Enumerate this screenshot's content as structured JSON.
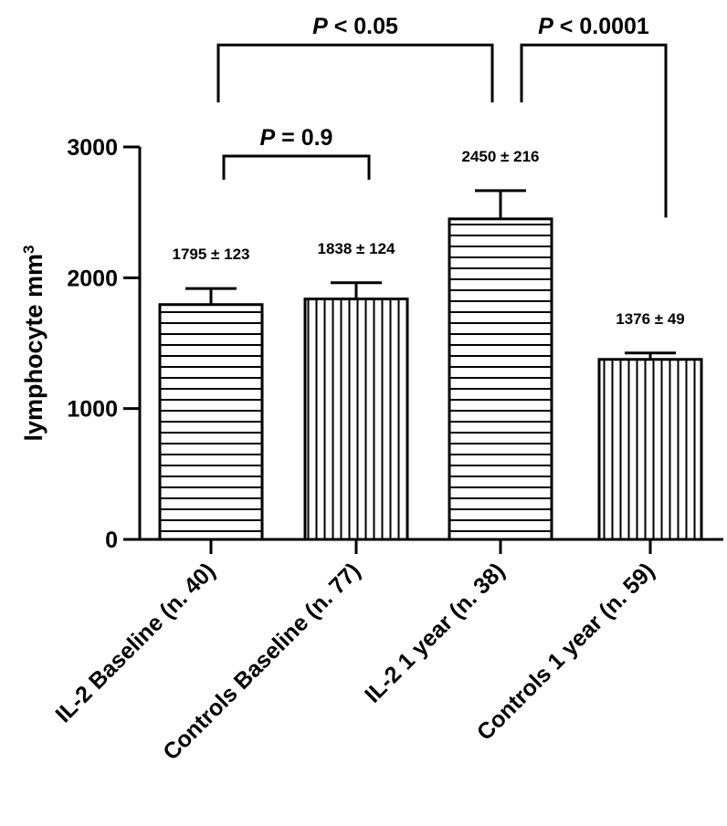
{
  "chart_data": {
    "type": "bar",
    "categories": [
      "IL-2 Baseline (n. 40)",
      "Controls Baseline (n. 77)",
      "IL-2 1 year (n. 38)",
      "Controls 1 year (n. 59)"
    ],
    "values": [
      1795,
      1838,
      2450,
      1376
    ],
    "errors": [
      123,
      124,
      216,
      49
    ],
    "patterns": [
      "horizontal-stripes",
      "vertical-stripes",
      "horizontal-stripes",
      "vertical-stripes"
    ],
    "data_labels": [
      "1795 ± 123",
      "1838 ± 124",
      "2450 ± 216",
      "1376 ± 49"
    ],
    "ylabel": "lymphocyte mm",
    "ylabel_superscript": "3",
    "ylim": [
      0,
      3000
    ],
    "yticks": [
      0,
      1000,
      2000,
      3000
    ],
    "ytick_labels": [
      "0",
      "1000",
      "2000",
      "3000"
    ],
    "comparisons": [
      {
        "from": 0,
        "to": 1,
        "label_prefix": "P",
        "label_rest": " = 0.9",
        "bottom_value": 2750,
        "top_value": 2930
      },
      {
        "from": 0,
        "to": 2,
        "label_prefix": "P",
        "label_rest": " < 0.05",
        "bottom_value": 3340,
        "top_value": 3780
      },
      {
        "from": 2,
        "to": 3,
        "label_prefix": "P",
        "label_rest": " < 0.0001",
        "bottom_value": 3340,
        "top_value": 3780,
        "to_bottom_value": 2460
      }
    ],
    "grid": false,
    "legend": "none",
    "colors": {
      "stroke": "#000000",
      "fill": "#ffffff"
    }
  }
}
